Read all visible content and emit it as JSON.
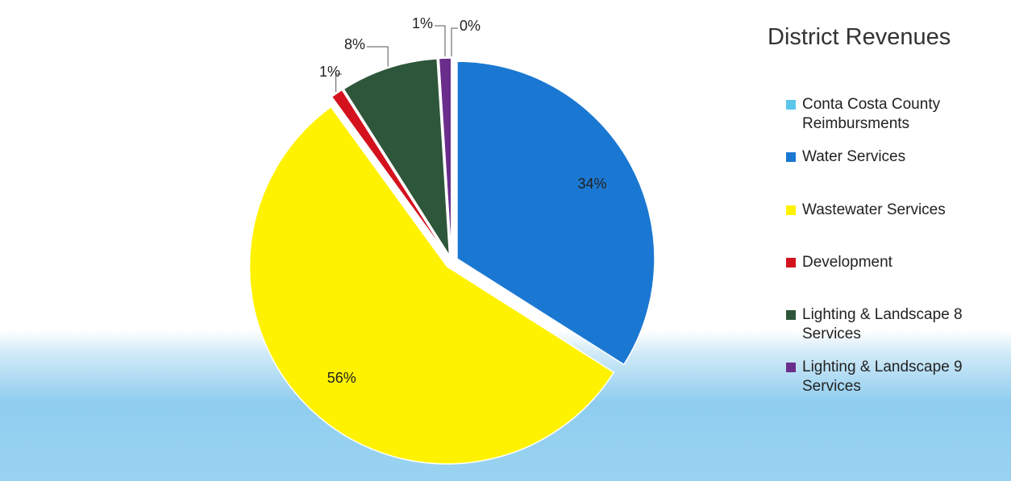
{
  "chart_data": {
    "type": "pie",
    "title": "District Revenues",
    "categories": [
      "Conta Costa County Reimbursments",
      "Water Services",
      "Wastewater Services",
      "Development",
      "Lighting & Landscape 8 Services",
      "Lighting & Landscape 9 Services"
    ],
    "values": [
      0,
      34,
      56,
      1,
      8,
      1
    ],
    "value_labels": [
      "0%",
      "34%",
      "56%",
      "1%",
      "8%",
      "1%"
    ],
    "colors": [
      "#5cc6ea",
      "#1b78d2",
      "#fff200",
      "#d3121e",
      "#2e563a",
      "#6b2d8c"
    ],
    "legend": "right"
  }
}
